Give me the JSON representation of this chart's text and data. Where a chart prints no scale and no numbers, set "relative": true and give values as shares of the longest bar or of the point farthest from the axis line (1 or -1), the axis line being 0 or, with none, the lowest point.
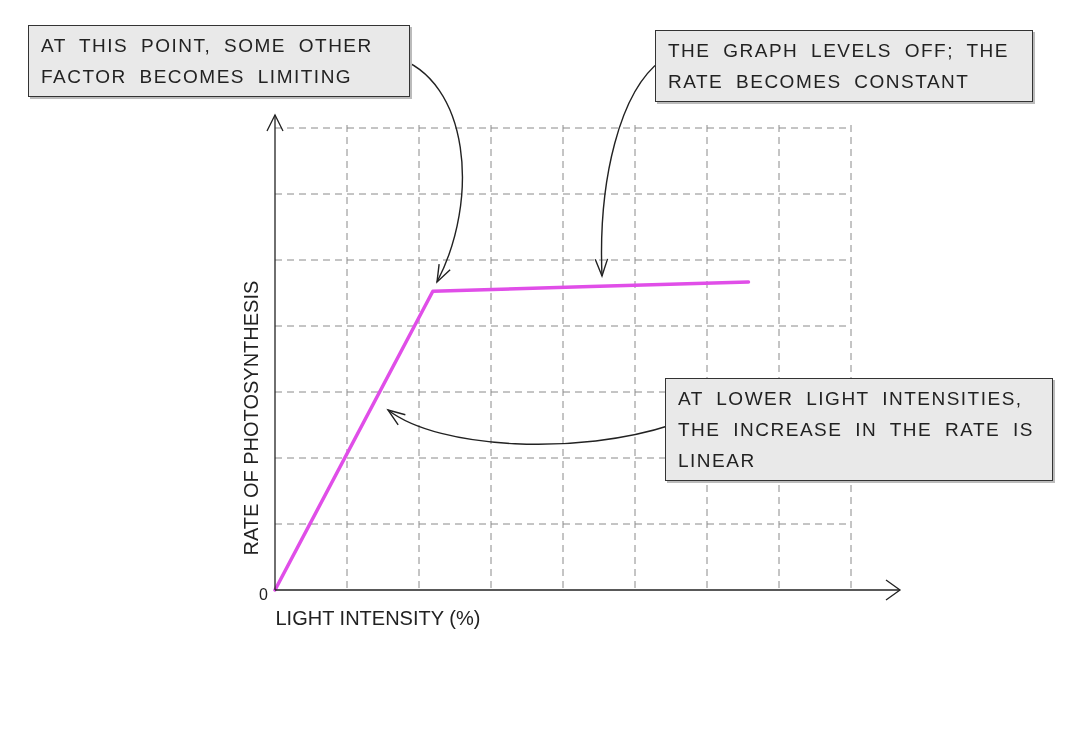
{
  "chart_data": {
    "type": "line",
    "relative": true,
    "xlabel": "LIGHT INTENSITY (%)",
    "ylabel": "RATE OF PHOTOSYNTHESIS",
    "categories": [
      null,
      null,
      null,
      null
    ],
    "series": [
      {
        "color": "#e04ee8",
        "values": [
          0,
          0.97,
          0.985,
          1
        ]
      }
    ],
    "grid": true,
    "marker": "none",
    "line_style": "solid",
    "legend": false,
    "annotations": [
      "0",
      "AT THIS POINT, SOME OTHER FACTOR BECOMES LIMITING",
      "THE GRAPH LEVELS OFF; THE RATE BECOMES CONSTANT",
      "AT LOWER LIGHT INTENSITIES, THE INCREASE IN THE RATE IS LINEAR"
    ]
  }
}
